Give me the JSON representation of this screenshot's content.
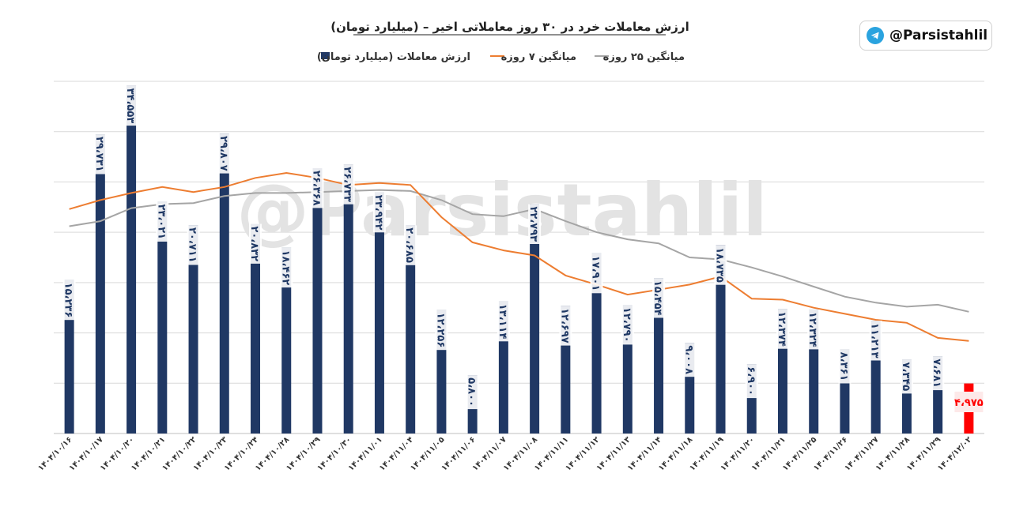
{
  "badge": {
    "handle": "@Parsistahlil",
    "icon": "telegram-icon"
  },
  "watermark": "@Parsistahlil",
  "colors": {
    "bar": "#203864",
    "last_bar": "#ff0000",
    "ma7": "#ed7d31",
    "ma25": "#a5a5a5",
    "grid": "#d9d9d9"
  },
  "chart_data": {
    "type": "bar",
    "title": "ارزش معاملات خرد در ۳۰ روز معاملاتی اخیر",
    "subtitle": "(میلیارد تومان)",
    "xlabel": "",
    "ylabel": "",
    "ylim": [
      0,
      35000
    ],
    "grid": true,
    "legend_position": "top",
    "categories": [
      "۱۴۰۴/۱۰/۱۶",
      "۱۴۰۴/۱۰/۱۷",
      "۱۴۰۴/۱۰/۲۰",
      "۱۴۰۴/۱۰/۲۱",
      "۱۴۰۴/۱۰/۲۲",
      "۱۴۰۴/۱۰/۲۳",
      "۱۴۰۴/۱۰/۲۴",
      "۱۴۰۴/۱۰/۲۸",
      "۱۴۰۴/۱۰/۲۹",
      "۱۴۰۴/۱۰/۳۰",
      "۱۴۰۴/۱۱/۰۱",
      "۱۴۰۴/۱۱/۰۴",
      "۱۴۰۴/۱۱/۰۵",
      "۱۴۰۴/۱۱/۰۶",
      "۱۴۰۴/۱۱/۰۷",
      "۱۴۰۴/۱۱/۰۸",
      "۱۴۰۴/۱۱/۱۱",
      "۱۴۰۴/۱۱/۱۲",
      "۱۴۰۴/۱۱/۱۳",
      "۱۴۰۴/۱۱/۱۴",
      "۱۴۰۴/۱۱/۱۸",
      "۱۴۰۴/۱۱/۱۹",
      "۱۴۰۴/۱۱/۲۰",
      "۱۴۰۴/۱۱/۲۱",
      "۱۴۰۴/۱۱/۲۵",
      "۱۴۰۴/۱۱/۲۶",
      "۱۴۰۴/۱۱/۲۷",
      "۱۴۰۴/۱۱/۲۸",
      "۱۴۰۴/۱۱/۲۹",
      "۱۴۰۴/۱۲/۰۲"
    ],
    "series": [
      {
        "name": "ارزش معاملات (میلیارد تومان)",
        "kind": "bar",
        "values": [
          15236,
          29731,
          34553,
          23021,
          20711,
          29807,
          20832,
          18462,
          26368,
          26733,
          23942,
          20685,
          12256,
          5800,
          13114,
          22793,
          12697,
          17901,
          12790,
          15454,
          9008,
          18735,
          6900,
          12374,
          12324,
          8361,
          11213,
          7345,
          7681,
          4975
        ],
        "labels": [
          "۱۵،۲۳۶",
          "۲۹،۷۳۱",
          "۳۴،۵۵۳",
          "۲۳،۰۲۱",
          "۲۰،۷۱۱",
          "۲۹،۸۰۷",
          "۲۰،۸۳۲",
          "۱۸،۴۶۲",
          "۲۶،۳۶۸",
          "۲۶،۷۳۳",
          "۲۳،۹۴۲",
          "۲۰،۶۸۵",
          "۱۲،۲۵۶",
          "۵،۸۰۰",
          "۱۳،۱۱۴",
          "۲۲،۷۹۳",
          "۱۲،۶۹۷",
          "۱۷،۹۰۱",
          "۱۲،۷۹۰",
          "۱۵،۴۵۴",
          "۹،۰۰۸",
          "۱۸،۷۳۵",
          "۶،۹۰۰",
          "۱۲،۳۷۴",
          "۱۲،۳۲۴",
          "۸،۳۶۱",
          "۱۱،۲۱۳",
          "۷،۳۴۵",
          "۷،۶۸۱",
          "۴،۹۷۵"
        ]
      },
      {
        "name": "میانگین ۷ روزه",
        "kind": "line",
        "values": [
          22300,
          23200,
          23900,
          24500,
          24000,
          24500,
          25400,
          25900,
          25400,
          24700,
          24900,
          24700,
          21500,
          19000,
          18200,
          17700,
          15700,
          14800,
          13800,
          14300,
          14800,
          15600,
          13400,
          13300,
          12500,
          11900,
          11300,
          11000,
          9500,
          9200
        ]
      },
      {
        "name": "میانگین ۲۵ روزه",
        "kind": "line",
        "values": [
          20600,
          21100,
          22400,
          22800,
          22900,
          23600,
          23900,
          23900,
          24000,
          24100,
          24200,
          24100,
          23200,
          21800,
          21600,
          22300,
          21100,
          20000,
          19300,
          18900,
          17500,
          17300,
          16500,
          15600,
          14600,
          13600,
          13000,
          12600,
          12800,
          12100
        ]
      }
    ]
  }
}
